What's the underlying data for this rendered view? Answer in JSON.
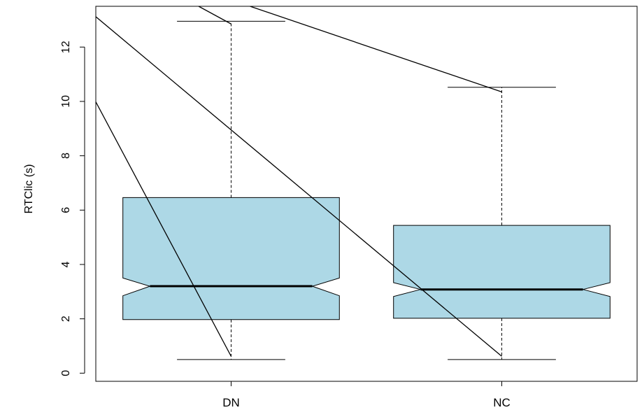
{
  "chart_data": {
    "type": "box",
    "notched": true,
    "title": "",
    "xlabel": "",
    "ylabel": "RTClic (s)",
    "ylim": [
      -0.3,
      13.5
    ],
    "yticks": [
      "0",
      "2",
      "4",
      "6",
      "8",
      "10",
      "12"
    ],
    "categories": [
      "DN",
      "NC"
    ],
    "box_color": "#add8e6",
    "boxes": [
      {
        "label": "DN",
        "whisker_low": 0.5,
        "q1": 1.97,
        "median": 3.2,
        "q3": 6.46,
        "whisker_high": 12.95,
        "notch_low": 2.85,
        "notch_high": 3.5
      },
      {
        "label": "NC",
        "whisker_low": 0.5,
        "q1": 2.02,
        "median": 3.08,
        "q3": 5.44,
        "whisker_high": 10.52,
        "notch_low": 2.82,
        "notch_high": 3.33
      }
    ],
    "overlay_lines": [
      {
        "from": [
          0.49,
          10.17
        ],
        "to": [
          1.0,
          0.62
        ]
      },
      {
        "from": [
          0.49,
          13.2
        ],
        "to": [
          2.0,
          0.62
        ]
      },
      {
        "from": [
          0.88,
          13.5
        ],
        "to": [
          1.0,
          12.85
        ]
      },
      {
        "from": [
          1.07,
          13.5
        ],
        "to": [
          2.0,
          10.35
        ]
      }
    ]
  }
}
